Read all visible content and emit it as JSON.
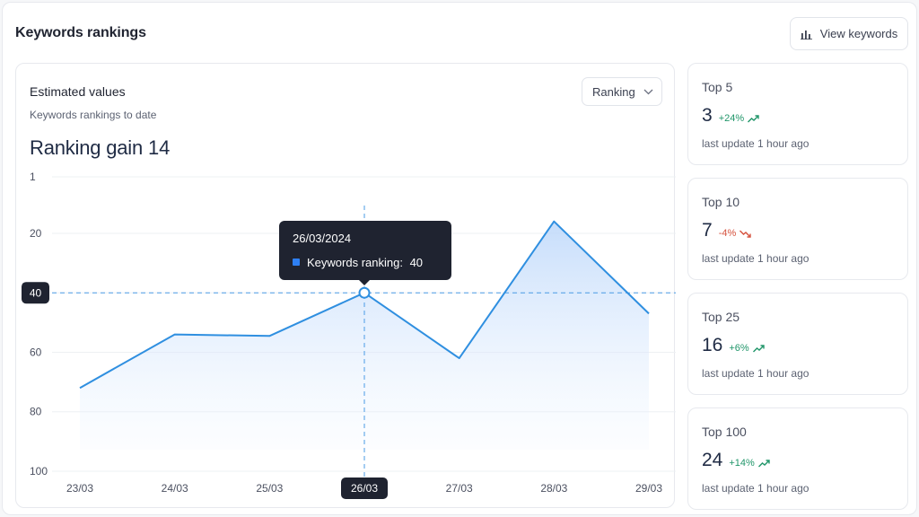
{
  "header": {
    "title": "Keywords rankings",
    "view_keywords_label": "View keywords"
  },
  "chart_panel": {
    "title": "Estimated values",
    "subtitle": "Keywords rankings to date",
    "gain_label": "Ranking gain",
    "gain_value": "14",
    "select_value": "Ranking"
  },
  "tooltip": {
    "date": "26/03/2024",
    "series_label": "Keywords ranking:",
    "value": "40",
    "y_marker": "40",
    "x_marker": "26/03"
  },
  "chart_data": {
    "type": "area",
    "categories": [
      "23/03",
      "24/03",
      "25/03",
      "26/03",
      "27/03",
      "28/03",
      "29/03"
    ],
    "series": [
      {
        "name": "Keywords ranking",
        "values": [
          72,
          54,
          54.5,
          40,
          62,
          16,
          47
        ]
      }
    ],
    "y_ticks": [
      "1",
      "20",
      "40",
      "60",
      "80",
      "100"
    ],
    "ylim": [
      1,
      100
    ],
    "y_inverted": true,
    "grid": true,
    "highlight_index": 3,
    "colors": {
      "line": "#2f8fe0",
      "fill": "#cfe3fb",
      "marker_bg": "#1f2330"
    }
  },
  "stats": [
    {
      "label": "Top 5",
      "value": "3",
      "change": "+24%",
      "trend": "up",
      "update": "last update 1 hour ago"
    },
    {
      "label": "Top 10",
      "value": "7",
      "change": "-4%",
      "trend": "down",
      "update": "last update 1 hour ago"
    },
    {
      "label": "Top 25",
      "value": "16",
      "change": "+6%",
      "trend": "up",
      "update": "last update 1 hour ago"
    },
    {
      "label": "Top 100",
      "value": "24",
      "change": "+14%",
      "trend": "up",
      "update": "last update 1 hour ago"
    }
  ]
}
